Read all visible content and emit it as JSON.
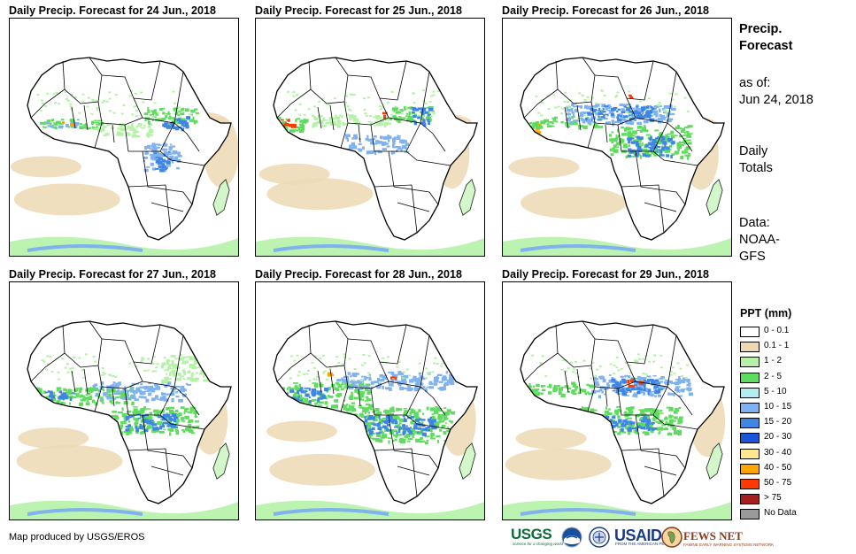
{
  "panels": [
    {
      "title": "Daily Precip. Forecast for 24 Jun., 2018"
    },
    {
      "title": "Daily Precip. Forecast for 25 Jun., 2018"
    },
    {
      "title": "Daily Precip. Forecast for 26 Jun., 2018"
    },
    {
      "title": "Daily Precip. Forecast for 27 Jun., 2018"
    },
    {
      "title": "Daily Precip. Forecast for 28 Jun., 2018"
    },
    {
      "title": "Daily Precip. Forecast for 29 Jun., 2018"
    }
  ],
  "info": {
    "heading_line1": "Precip.",
    "heading_line2": "Forecast",
    "asof_line1": "as of:",
    "asof_line2": "Jun 24, 2018",
    "daily_line1": "Daily",
    "daily_line2": "Totals",
    "data_line1": "Data:",
    "data_line2": "NOAA-",
    "data_line3": "GFS"
  },
  "legend": {
    "title": "PPT (mm)",
    "items": [
      {
        "label": "0 - 0.1",
        "color": "#ffffff"
      },
      {
        "label": "0.1 - 1",
        "color": "#ecd9b4"
      },
      {
        "label": "1 - 2",
        "color": "#b5f2a8"
      },
      {
        "label": "2 - 5",
        "color": "#5fdc5f"
      },
      {
        "label": "5 - 10",
        "color": "#b0eef2"
      },
      {
        "label": "10 - 15",
        "color": "#7fb2ee"
      },
      {
        "label": "15 - 20",
        "color": "#3f86e4"
      },
      {
        "label": "20 - 30",
        "color": "#1c56d6"
      },
      {
        "label": "30 - 40",
        "color": "#ffe890"
      },
      {
        "label": "40 - 50",
        "color": "#ffa500"
      },
      {
        "label": "50 - 75",
        "color": "#ff3a00"
      },
      {
        "label": "> 75",
        "color": "#a51f1f"
      },
      {
        "label": "No Data",
        "color": "#9a9a9a"
      }
    ]
  },
  "credit": "Map produced by USGS/EROS",
  "logos": {
    "usgs": "USGS",
    "usgs_tagline": "science for a changing world",
    "usaid": "USAID",
    "usaid_tagline": "FROM THE AMERICAN PEOPLE",
    "fews": "FEWS NET",
    "fews_tagline": "FAMINE EARLY WARNING SYSTEMS NETWORK"
  }
}
